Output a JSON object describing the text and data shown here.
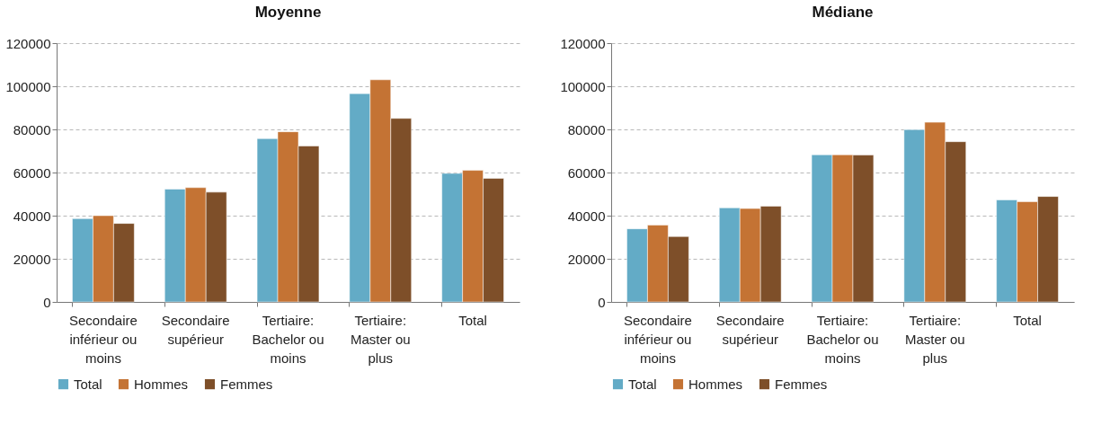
{
  "chart_data": [
    {
      "type": "bar",
      "title": "Moyenne",
      "categories": [
        "Secondaire inférieur ou moins",
        "Secondaire supérieur",
        "Tertiaire: Bachelor ou moins",
        "Tertiaire: Master ou plus",
        "Total"
      ],
      "series": [
        {
          "name": "Total",
          "color": "#63abc6",
          "values": [
            38600,
            52300,
            75700,
            96600,
            59600
          ]
        },
        {
          "name": "Hommes",
          "color": "#c47334",
          "values": [
            40000,
            53000,
            78900,
            103000,
            61000
          ]
        },
        {
          "name": "Femmes",
          "color": "#7e4f29",
          "values": [
            36400,
            50900,
            72300,
            85100,
            57300
          ]
        }
      ],
      "ylim": [
        0,
        120000
      ],
      "yticks": [
        0,
        20000,
        40000,
        60000,
        80000,
        100000,
        120000
      ],
      "grid": "y",
      "legend": "bottom"
    },
    {
      "type": "bar",
      "title": "Médiane",
      "categories": [
        "Secondaire inférieur ou moins",
        "Secondaire supérieur",
        "Tertiaire: Bachelor ou moins",
        "Tertiaire: Master ou plus",
        "Total"
      ],
      "series": [
        {
          "name": "Total",
          "color": "#63abc6",
          "values": [
            33900,
            43600,
            68200,
            79900,
            47300
          ]
        },
        {
          "name": "Hommes",
          "color": "#c47334",
          "values": [
            35600,
            43300,
            68200,
            83300,
            46500
          ]
        },
        {
          "name": "Femmes",
          "color": "#7e4f29",
          "values": [
            30300,
            44400,
            68100,
            74300,
            48900
          ]
        }
      ],
      "ylim": [
        0,
        120000
      ],
      "yticks": [
        0,
        20000,
        40000,
        60000,
        80000,
        100000,
        120000
      ],
      "grid": "y",
      "legend": "bottom"
    }
  ]
}
